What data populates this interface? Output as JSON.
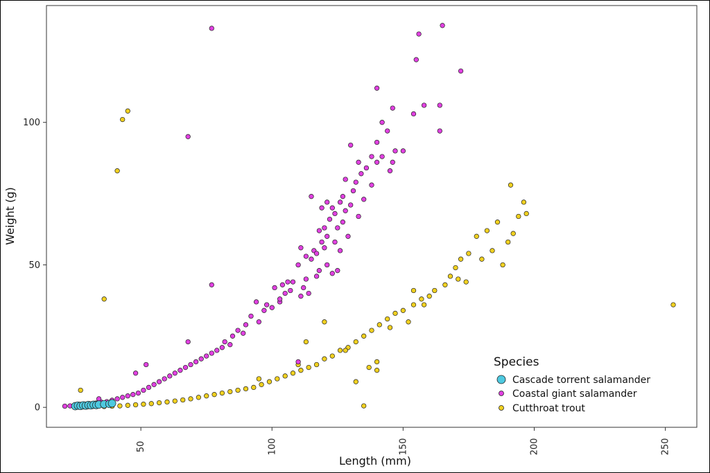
{
  "chart_data": {
    "type": "scatter",
    "title": "",
    "xlabel": "Length (mm)",
    "ylabel": "Weight (g)",
    "xlim": [
      14,
      262
    ],
    "ylim": [
      -7,
      141
    ],
    "xticks": [
      50,
      100,
      150,
      200,
      250
    ],
    "yticks": [
      0,
      50,
      100
    ],
    "grid": false,
    "legend_title": "Species",
    "legend_position": "bottom-right",
    "series": [
      {
        "name": "Cascade torrent salamander",
        "color": "#4ec9e0",
        "points": [
          [
            25,
            0.4
          ],
          [
            26,
            0.6
          ],
          [
            27,
            0.5
          ],
          [
            28,
            0.7
          ],
          [
            29,
            0.6
          ],
          [
            30,
            0.8
          ],
          [
            31,
            0.7
          ],
          [
            32,
            0.9
          ],
          [
            33,
            0.8
          ],
          [
            34,
            1.0
          ],
          [
            36,
            1.1
          ],
          [
            38,
            1.2
          ],
          [
            39,
            1.4
          ]
        ]
      },
      {
        "name": "Coastal giant salamander",
        "color": "#e040e0",
        "points": [
          [
            77,
            133
          ],
          [
            156,
            131
          ],
          [
            165,
            134
          ],
          [
            155,
            122
          ],
          [
            172,
            118
          ],
          [
            140,
            112
          ],
          [
            158,
            106
          ],
          [
            164,
            106
          ],
          [
            146,
            105
          ],
          [
            154,
            103
          ],
          [
            142,
            100
          ],
          [
            144,
            97
          ],
          [
            164,
            97
          ],
          [
            68,
            95
          ],
          [
            130,
            92
          ],
          [
            140,
            93
          ],
          [
            147,
            90
          ],
          [
            150,
            90
          ],
          [
            142,
            88
          ],
          [
            138,
            88
          ],
          [
            133,
            86
          ],
          [
            140,
            86
          ],
          [
            146,
            86
          ],
          [
            145,
            83
          ],
          [
            136,
            84
          ],
          [
            134,
            82
          ],
          [
            128,
            80
          ],
          [
            132,
            79
          ],
          [
            138,
            78
          ],
          [
            131,
            76
          ],
          [
            127,
            74
          ],
          [
            115,
            74
          ],
          [
            135,
            73
          ],
          [
            121,
            72
          ],
          [
            126,
            72
          ],
          [
            130,
            71
          ],
          [
            119,
            70
          ],
          [
            123,
            70
          ],
          [
            128,
            69
          ],
          [
            124,
            68
          ],
          [
            122,
            66
          ],
          [
            127,
            65
          ],
          [
            133,
            67
          ],
          [
            120,
            63
          ],
          [
            125,
            63
          ],
          [
            118,
            62
          ],
          [
            121,
            60
          ],
          [
            129,
            60
          ],
          [
            119,
            58
          ],
          [
            124,
            58
          ],
          [
            120,
            56
          ],
          [
            116,
            55
          ],
          [
            117,
            54
          ],
          [
            111,
            56
          ],
          [
            113,
            53
          ],
          [
            110,
            50
          ],
          [
            115,
            52
          ],
          [
            121,
            50
          ],
          [
            125,
            48
          ],
          [
            123,
            47
          ],
          [
            117,
            46
          ],
          [
            113,
            45
          ],
          [
            108,
            44
          ],
          [
            106,
            44
          ],
          [
            104,
            43
          ],
          [
            101,
            42
          ],
          [
            107,
            41
          ],
          [
            105,
            40
          ],
          [
            111,
            39
          ],
          [
            103,
            37
          ],
          [
            100,
            35
          ],
          [
            98,
            36
          ],
          [
            94,
            37
          ],
          [
            97,
            34
          ],
          [
            92,
            32
          ],
          [
            95,
            30
          ],
          [
            90,
            29
          ],
          [
            87,
            27
          ],
          [
            89,
            26
          ],
          [
            85,
            25
          ],
          [
            82,
            23
          ],
          [
            84,
            22
          ],
          [
            81,
            21
          ],
          [
            79,
            20
          ],
          [
            77,
            19
          ],
          [
            75,
            18
          ],
          [
            73,
            17
          ],
          [
            71,
            16
          ],
          [
            69,
            15
          ],
          [
            67,
            14
          ],
          [
            65,
            13
          ],
          [
            63,
            12
          ],
          [
            61,
            11
          ],
          [
            59,
            10
          ],
          [
            57,
            9
          ],
          [
            55,
            8
          ],
          [
            53,
            7
          ],
          [
            51,
            6
          ],
          [
            49,
            5
          ],
          [
            47,
            4.5
          ],
          [
            45,
            4
          ],
          [
            43,
            3.5
          ],
          [
            41,
            3
          ],
          [
            39,
            2.5
          ],
          [
            37,
            2
          ],
          [
            35,
            1.8
          ],
          [
            33,
            1.5
          ],
          [
            31,
            1.2
          ],
          [
            29,
            1
          ],
          [
            27,
            0.8
          ],
          [
            25,
            0.6
          ],
          [
            23,
            0.5
          ],
          [
            21,
            0.4
          ],
          [
            77,
            43
          ],
          [
            103,
            38
          ],
          [
            118,
            48
          ],
          [
            112,
            42
          ],
          [
            126,
            55
          ],
          [
            52,
            15
          ],
          [
            68,
            23
          ],
          [
            48,
            12
          ],
          [
            34,
            3
          ],
          [
            110,
            16
          ],
          [
            114,
            40
          ]
        ]
      },
      {
        "name": "Cutthroat trout",
        "color": "#f0d020",
        "points": [
          [
            45,
            104
          ],
          [
            43,
            101
          ],
          [
            41,
            83
          ],
          [
            36,
            38
          ],
          [
            27,
            6
          ],
          [
            253,
            36
          ],
          [
            191,
            78
          ],
          [
            196,
            72
          ],
          [
            197,
            68
          ],
          [
            194,
            67
          ],
          [
            192,
            61
          ],
          [
            186,
            65
          ],
          [
            182,
            62
          ],
          [
            178,
            60
          ],
          [
            190,
            58
          ],
          [
            184,
            55
          ],
          [
            175,
            54
          ],
          [
            172,
            52
          ],
          [
            188,
            50
          ],
          [
            170,
            49
          ],
          [
            168,
            46
          ],
          [
            174,
            44
          ],
          [
            166,
            43
          ],
          [
            162,
            41
          ],
          [
            160,
            39
          ],
          [
            157,
            38
          ],
          [
            154,
            36
          ],
          [
            150,
            34
          ],
          [
            147,
            33
          ],
          [
            144,
            31
          ],
          [
            141,
            29
          ],
          [
            138,
            27
          ],
          [
            135,
            25
          ],
          [
            132,
            23
          ],
          [
            129,
            21
          ],
          [
            126,
            20
          ],
          [
            123,
            18
          ],
          [
            120,
            17
          ],
          [
            117,
            15
          ],
          [
            114,
            14
          ],
          [
            111,
            13
          ],
          [
            108,
            12
          ],
          [
            105,
            11
          ],
          [
            102,
            10
          ],
          [
            99,
            9
          ],
          [
            96,
            8
          ],
          [
            93,
            7
          ],
          [
            90,
            6.5
          ],
          [
            87,
            6
          ],
          [
            84,
            5.5
          ],
          [
            81,
            5
          ],
          [
            78,
            4.5
          ],
          [
            75,
            4
          ],
          [
            72,
            3.5
          ],
          [
            69,
            3
          ],
          [
            66,
            2.6
          ],
          [
            63,
            2.2
          ],
          [
            60,
            1.9
          ],
          [
            57,
            1.6
          ],
          [
            54,
            1.3
          ],
          [
            51,
            1.1
          ],
          [
            48,
            0.9
          ],
          [
            45,
            0.7
          ],
          [
            42,
            0.5
          ],
          [
            39,
            0.4
          ],
          [
            36,
            0.3
          ],
          [
            120,
            30
          ],
          [
            135,
            0.5
          ],
          [
            132,
            9
          ],
          [
            140,
            16
          ],
          [
            113,
            23
          ],
          [
            154,
            41
          ],
          [
            171,
            45
          ],
          [
            180,
            52
          ],
          [
            152,
            30
          ],
          [
            158,
            36
          ],
          [
            145,
            28
          ],
          [
            128,
            20
          ],
          [
            110,
            15
          ],
          [
            95,
            10
          ],
          [
            140,
            13
          ],
          [
            137,
            14
          ]
        ]
      }
    ]
  }
}
